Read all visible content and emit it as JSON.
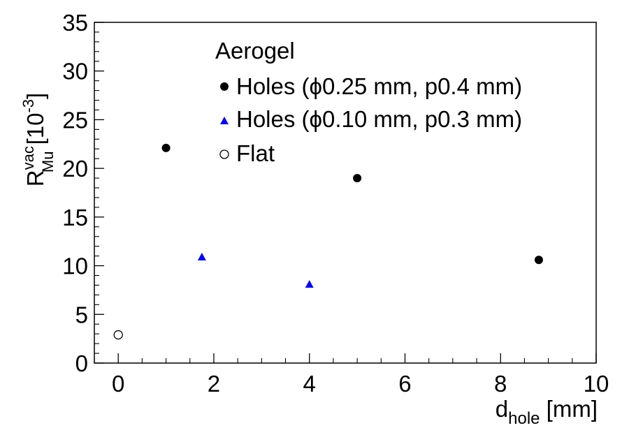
{
  "chart_data": {
    "type": "scatter",
    "title": "",
    "xlabel": {
      "main": "d",
      "sub": "hole",
      "unit": " [mm]"
    },
    "ylabel": {
      "main": "R",
      "sup": "vac",
      "sub": "Mu",
      "unit_open": " [10",
      "unit_exp": "-3",
      "unit_close": "]"
    },
    "xlim": [
      -0.5,
      10
    ],
    "ylim": [
      0,
      35
    ],
    "x_ticks": [
      0,
      2,
      4,
      6,
      8,
      10
    ],
    "y_ticks": [
      0,
      5,
      10,
      15,
      20,
      25,
      30,
      35
    ],
    "x_tick_labels": [
      "0",
      "2",
      "4",
      "6",
      "8",
      "10"
    ],
    "y_tick_labels": [
      "0",
      "5",
      "10",
      "15",
      "20",
      "25",
      "30",
      "35"
    ],
    "grid": false,
    "legend": {
      "placement": "top-center",
      "header": "Aerogel"
    },
    "series": [
      {
        "name": "Holes (ϕ0.25 mm, p0.4 mm)",
        "marker": "filled-circle",
        "color": "#000000",
        "points": [
          {
            "x": 1.0,
            "y": 22.1
          },
          {
            "x": 5.0,
            "y": 19.0
          },
          {
            "x": 8.8,
            "y": 10.6
          }
        ]
      },
      {
        "name": "Holes (ϕ0.10 mm, p0.3 mm)",
        "marker": "filled-triangle",
        "color": "#0000ff",
        "points": [
          {
            "x": 1.75,
            "y": 10.9
          },
          {
            "x": 4.0,
            "y": 8.1
          }
        ]
      },
      {
        "name": "Flat",
        "marker": "open-circle",
        "color": "#000000",
        "points": [
          {
            "x": 0.0,
            "y": 2.9
          }
        ]
      }
    ]
  }
}
